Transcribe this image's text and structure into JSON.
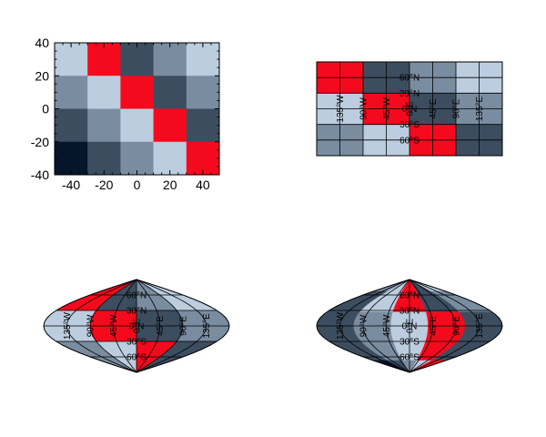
{
  "colors": {
    "light": "#bccddf",
    "medium": "#7a8ca0",
    "dark": "#3d4d60",
    "navy": "#07152a",
    "red": "#f50a1d",
    "grid": "#000000",
    "background": "#ffffff"
  },
  "chart_data": [
    {
      "type": "heatmap",
      "title": "",
      "xlabel": "",
      "ylabel": "",
      "xlim": [
        -50,
        50
      ],
      "ylim": [
        -40,
        40
      ],
      "x_edges": [
        -50,
        -30,
        -10,
        10,
        30,
        50
      ],
      "y_edges": [
        -40,
        -20,
        0,
        20,
        40
      ],
      "xticks": [
        "-40",
        "-20",
        "0",
        "20",
        "40"
      ],
      "yticks": [
        "40",
        "20",
        "0",
        "-20",
        "-40"
      ],
      "rows_top_to_bottom": [
        [
          "light",
          "red",
          "dark",
          "medium",
          "light"
        ],
        [
          "medium",
          "light",
          "red",
          "dark",
          "medium"
        ],
        [
          "dark",
          "medium",
          "light",
          "red",
          "dark"
        ],
        [
          "navy",
          "dark",
          "medium",
          "light",
          "red"
        ]
      ],
      "grid": false
    },
    {
      "type": "heatmap",
      "projection": "PlateCarree",
      "lon_range": [
        -180,
        180
      ],
      "lat_range": [
        -90,
        90
      ],
      "block_lon_edges": [
        -180,
        -90,
        0,
        90,
        180
      ],
      "block_lat_edges": [
        90,
        30,
        -30,
        -90
      ],
      "rows_top_to_bottom": [
        [
          "red",
          "dark",
          "medium",
          "light"
        ],
        [
          "light",
          "red",
          "dark",
          "medium"
        ],
        [
          "medium",
          "light",
          "red",
          "dark"
        ]
      ],
      "gridlines": {
        "lon_step": 45,
        "lat_step": 30
      },
      "lon_labels": [
        "135°W",
        "90°W",
        "45°W",
        "0°E",
        "45°E",
        "90°E",
        "135°E"
      ],
      "lat_labels": [
        "60°N",
        "30°N",
        "0°N",
        "30°S",
        "60°S"
      ]
    },
    {
      "type": "heatmap",
      "projection": "Sinusoidal",
      "lon_range": [
        -180,
        180
      ],
      "lat_range": [
        -90,
        90
      ],
      "block_lon_edges": [
        -180,
        -90,
        0,
        90,
        180
      ],
      "block_lat_edges": [
        90,
        30,
        -30,
        -90
      ],
      "rows_top_to_bottom": [
        [
          "red",
          "dark",
          "medium",
          "light"
        ],
        [
          "light",
          "red",
          "dark",
          "medium"
        ],
        [
          "medium",
          "light",
          "red",
          "dark"
        ]
      ],
      "gridlines": {
        "lon_step": 45,
        "lat_step": 30
      },
      "lon_labels": [
        "135°W",
        "90°W",
        "45°W",
        "0°E",
        "45°E",
        "90°E",
        "135°E"
      ],
      "lat_labels": [
        "60°N",
        "30°N",
        "0°N",
        "30°S",
        "60°S"
      ]
    },
    {
      "type": "heatmap",
      "projection": "Sinusoidal",
      "note_regions": "data grid regridded: column boundaries as fractions of projected half-width, rows as latitude bands",
      "col_fraction_edges": [
        -1,
        -0.6,
        -0.2,
        0.2,
        0.6,
        1
      ],
      "row_lat_edges": [
        90,
        67,
        27,
        -27,
        -67,
        -90
      ],
      "rows_top_to_bottom": [
        [
          "medium",
          "light",
          "red",
          "dark",
          "light"
        ],
        [
          "dark",
          "light",
          "red",
          "dark",
          "medium"
        ],
        [
          "dark",
          "medium",
          "light",
          "red",
          "dark"
        ],
        [
          "dark",
          "medium",
          "light",
          "red",
          "dark"
        ],
        [
          "navy",
          "dark",
          "medium",
          "light",
          "red"
        ]
      ],
      "gridlines": {
        "lon_step": 45,
        "lat_step": 30
      },
      "lon_labels": [
        "135°W",
        "90°W",
        "45°W",
        "0°E",
        "45°E",
        "90°E",
        "135°E"
      ],
      "lat_labels": [
        "60°N",
        "30°N",
        "0°N",
        "30°S",
        "60°S"
      ]
    }
  ]
}
